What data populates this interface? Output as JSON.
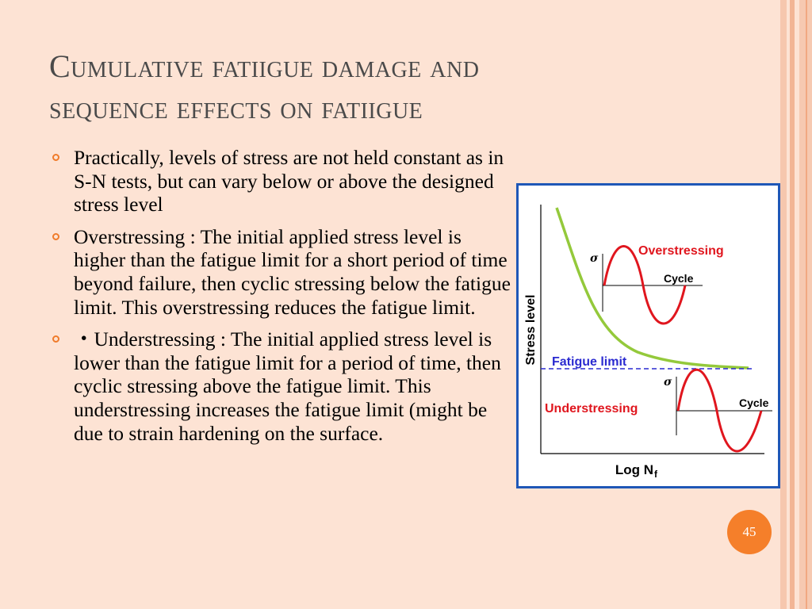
{
  "slide": {
    "title_line1": "Cumulative fatiigue damage and",
    "title_line2": "sequence effects on fatiigue",
    "bullets": [
      "Practically, levels of stress are not held constant as in S-N tests, but can vary below or above the designed stress level",
      "Overstressing : The initial applied stress level is higher than the fatigue limit for a short period of time beyond failure, then cyclic stressing below the fatigue limit. This overstressing reduces the fatigue limit.",
      "・Understressing : The initial applied stress level is lower than the fatigue limit for a period of time, then cyclic stressing above the fatigue limit. This understressing increases the fatigue limit (might be due to strain hardening on the surface."
    ],
    "page_number": "45"
  },
  "figure": {
    "y_axis_label": "Stress level",
    "x_axis_label": "Log N",
    "x_axis_subscript": "f",
    "fatigue_limit_label": "Fatigue limit",
    "overstressing_label": "Overstressing",
    "understressing_label": "Understressing",
    "sigma_symbol_top": "σ",
    "sigma_symbol_bottom": "σ",
    "cycle_label_top": "Cycle",
    "cycle_label_bottom": "Cycle",
    "colors": {
      "curve": "#94c93b",
      "sine": "#e0161e",
      "limit_line": "#2a2ad0",
      "label_red": "#e0161e",
      "label_blue": "#2a2ad0",
      "frame": "#1f57b7"
    }
  }
}
